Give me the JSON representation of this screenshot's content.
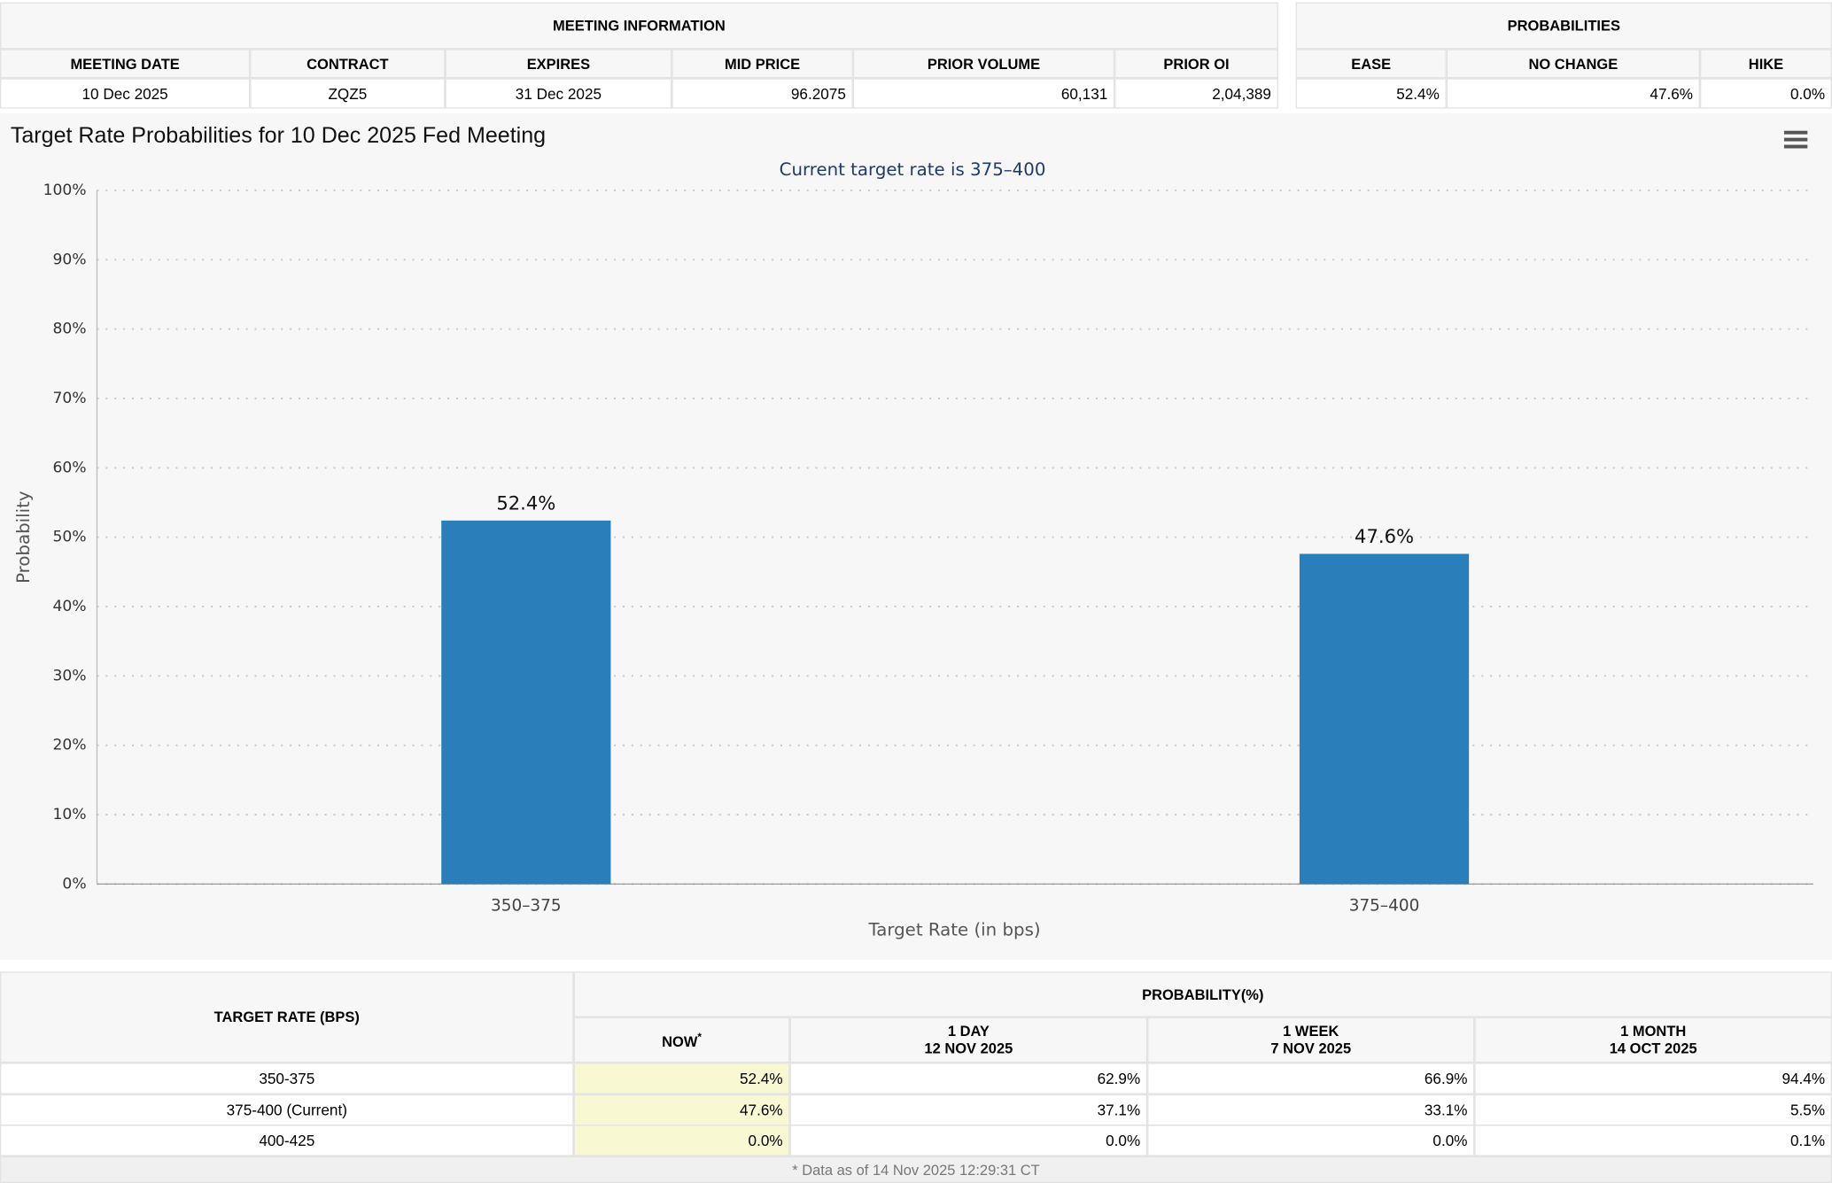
{
  "meeting_info": {
    "title": "MEETING INFORMATION",
    "columns": [
      "MEETING DATE",
      "CONTRACT",
      "EXPIRES",
      "MID PRICE",
      "PRIOR VOLUME",
      "PRIOR OI"
    ],
    "row": [
      "10 Dec 2025",
      "ZQZ5",
      "31 Dec 2025",
      "96.2075",
      "60,131",
      "2,04,389"
    ]
  },
  "probabilities": {
    "title": "PROBABILITIES",
    "columns": [
      "EASE",
      "NO CHANGE",
      "HIKE"
    ],
    "row": [
      "52.4%",
      "47.6%",
      "0.0%"
    ]
  },
  "chart_data": {
    "type": "bar",
    "title": "Target Rate Probabilities for 10 Dec 2025 Fed Meeting",
    "subtitle": "Current target rate is 375–400",
    "x_label": "Target Rate (in bps)",
    "y_label": "Probability",
    "categories": [
      "350–375",
      "375–400"
    ],
    "values": [
      52.4,
      47.6
    ],
    "value_labels": [
      "52.4%",
      "47.6%"
    ],
    "color": "#2a7fba",
    "ylim": [
      0,
      100
    ],
    "yticks": [
      {
        "value": 0,
        "label": "0%"
      },
      {
        "value": 10,
        "label": "10%"
      },
      {
        "value": 20,
        "label": "20%"
      },
      {
        "value": 30,
        "label": "30%"
      },
      {
        "value": 40,
        "label": "40%"
      },
      {
        "value": 50,
        "label": "50%"
      },
      {
        "value": 60,
        "label": "60%"
      },
      {
        "value": 70,
        "label": "70%"
      },
      {
        "value": 80,
        "label": "80%"
      },
      {
        "value": 90,
        "label": "90%"
      },
      {
        "value": 100,
        "label": "100%"
      }
    ],
    "grid": true
  },
  "history": {
    "row_header": "TARGET RATE (BPS)",
    "group_header": "PROBABILITY(%)",
    "columns": [
      {
        "label": "NOW",
        "marker": "*"
      },
      {
        "label": "1 DAY",
        "date": "12 NOV 2025"
      },
      {
        "label": "1 WEEK",
        "date": "7 NOV 2025"
      },
      {
        "label": "1 MONTH",
        "date": "14 OCT 2025"
      }
    ],
    "rows": [
      {
        "rate": "350-375",
        "values": [
          "52.4%",
          "62.9%",
          "66.9%",
          "94.4%"
        ]
      },
      {
        "rate": "375-400 (Current)",
        "values": [
          "47.6%",
          "37.1%",
          "33.1%",
          "5.5%"
        ]
      },
      {
        "rate": "400-425",
        "values": [
          "0.0%",
          "0.0%",
          "0.0%",
          "0.1%"
        ]
      }
    ]
  },
  "footnote": "* Data as of 14 Nov 2025 12:29:31 CT"
}
